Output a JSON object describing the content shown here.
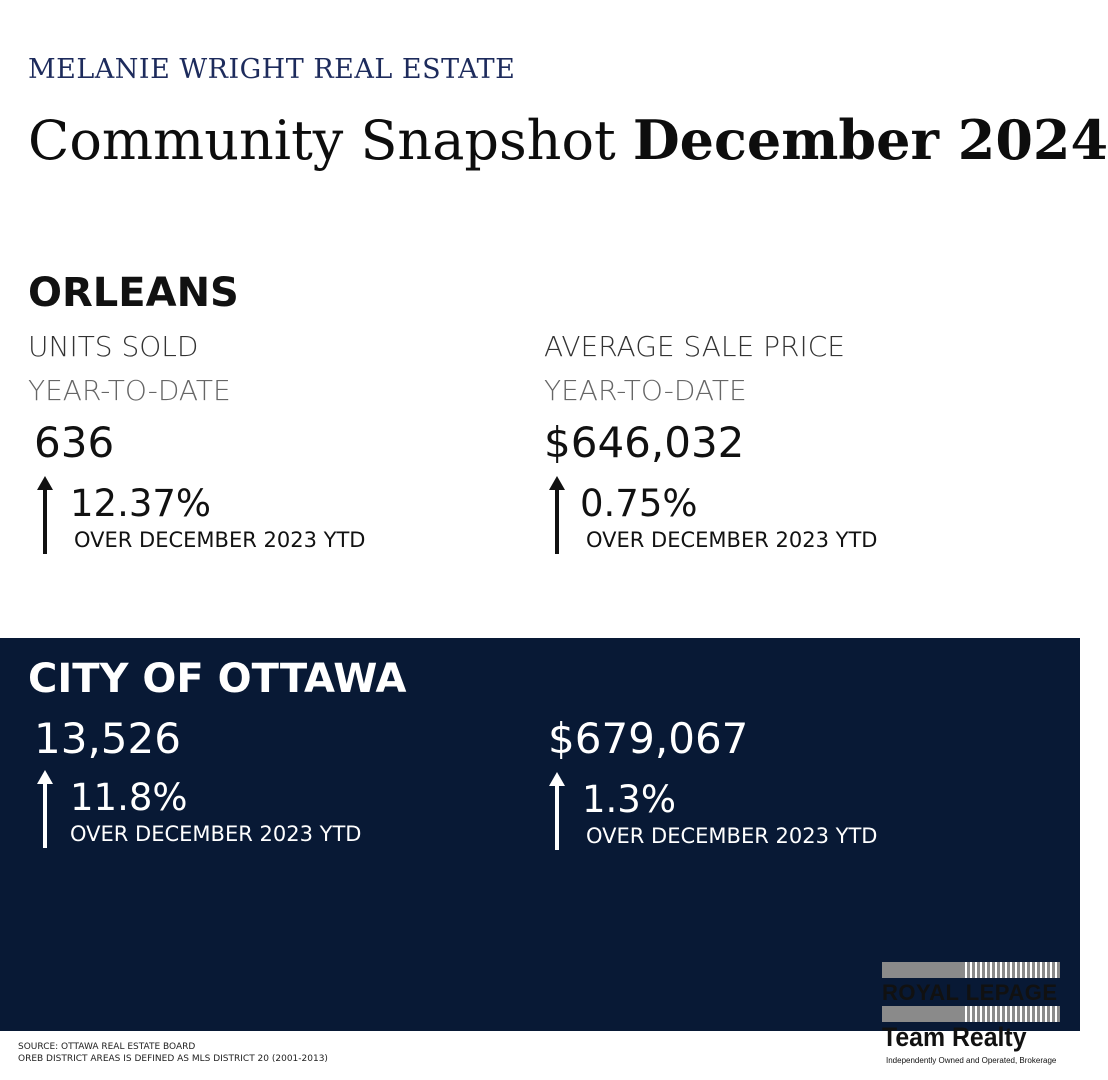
{
  "brand": "MELANIE WRIGHT REAL ESTATE",
  "title": {
    "regular": "Community Snapshot",
    "bold": "December 2024"
  },
  "orleans": {
    "heading": "ORLEANS",
    "units": {
      "label": "UNITS SOLD",
      "period": "YEAR-TO-DATE",
      "value": "636",
      "change": "12.37%",
      "change_note": "OVER DECEMBER 2023 YTD",
      "direction": "up-arrow-icon"
    },
    "price": {
      "label": "AVERAGE SALE PRICE",
      "period": "YEAR-TO-DATE",
      "value": "$646,032",
      "change": "0.75%",
      "change_note": "OVER DECEMBER 2023 YTD",
      "direction": "up-arrow-icon"
    }
  },
  "ottawa": {
    "heading": "CITY OF OTTAWA",
    "units": {
      "value": "13,526",
      "change": "11.8%",
      "change_note": "OVER DECEMBER 2023 YTD",
      "direction": "up-arrow-icon"
    },
    "price": {
      "value": "$679,067",
      "change": "1.3%",
      "change_note": "OVER DECEMBER 2023 YTD",
      "direction": "up-arrow-icon"
    }
  },
  "footer": {
    "source": "SOURCE: OTTAWA REAL ESTATE BOARD",
    "district": "OREB DISTRICT AREAS IS DEFINED AS MLS DISTRICT 20 (2001-2013)"
  },
  "logo": {
    "line1": "ROYAL LEPAGE",
    "line2": "Team Realty",
    "tagline": "Independently Owned and Operated, Brokerage"
  },
  "colors": {
    "brand_navy": "#1d2b5c",
    "panel_navy": "#081935",
    "arrow_dark": "#111111",
    "arrow_light": "#ffffff"
  }
}
